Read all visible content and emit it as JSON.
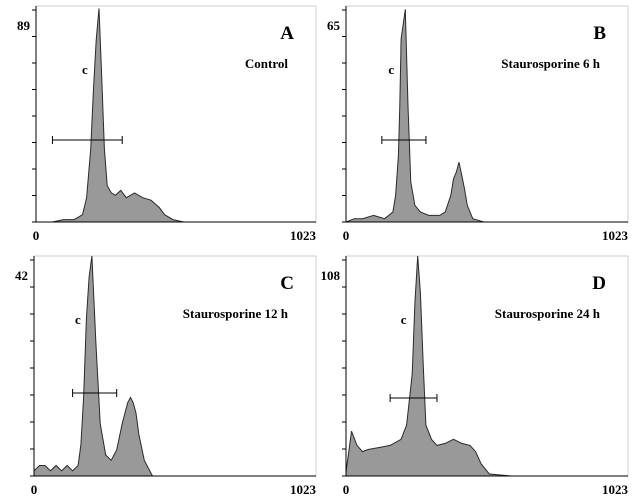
{
  "chart_data": [
    {
      "panel": "A",
      "type": "area",
      "condition": "Control",
      "xlim": [
        0,
        1023
      ],
      "x_tick_labels": [
        "0",
        "1023"
      ],
      "ylim": [
        0,
        89
      ],
      "y_max_label": "89",
      "peak_label": "c",
      "x": [
        0,
        30,
        60,
        100,
        140,
        170,
        185,
        200,
        210,
        220,
        230,
        240,
        250,
        260,
        275,
        290,
        310,
        330,
        360,
        390,
        420,
        450,
        470,
        500,
        540,
        600,
        700,
        800,
        900,
        1023
      ],
      "y": [
        0,
        0,
        0,
        1,
        1,
        3,
        10,
        30,
        55,
        75,
        88,
        60,
        30,
        15,
        12,
        11,
        13,
        10,
        12,
        10,
        9,
        6,
        3,
        1,
        0,
        0,
        0,
        0,
        0,
        0
      ]
    },
    {
      "panel": "B",
      "type": "area",
      "condition": "Staurosporine 6 h",
      "xlim": [
        0,
        1023
      ],
      "x_tick_labels": [
        "0",
        "1023"
      ],
      "ylim": [
        0,
        65
      ],
      "y_max_label": "65",
      "peak_label": "c",
      "x": [
        0,
        30,
        60,
        100,
        140,
        170,
        180,
        190,
        195,
        200,
        215,
        225,
        235,
        250,
        270,
        300,
        340,
        360,
        380,
        390,
        400,
        410,
        420,
        430,
        440,
        460,
        500,
        600,
        700,
        800,
        900,
        1023
      ],
      "y": [
        0,
        1,
        1,
        2,
        1,
        3,
        8,
        20,
        35,
        55,
        64,
        35,
        12,
        5,
        3,
        2,
        2,
        3,
        8,
        13,
        15,
        18,
        14,
        10,
        5,
        1,
        0,
        0,
        0,
        0,
        0,
        0
      ]
    },
    {
      "panel": "C",
      "type": "area",
      "condition": "Staurosporine 12 h",
      "xlim": [
        0,
        1023
      ],
      "x_tick_labels": [
        "0",
        "1023"
      ],
      "ylim": [
        0,
        42
      ],
      "y_max_label": "42",
      "peak_label": "c",
      "x": [
        0,
        20,
        40,
        60,
        80,
        100,
        120,
        140,
        160,
        170,
        180,
        190,
        200,
        210,
        225,
        240,
        260,
        280,
        300,
        320,
        340,
        350,
        360,
        370,
        380,
        400,
        430,
        500,
        600,
        700,
        800,
        900,
        1023
      ],
      "y": [
        1,
        2,
        2,
        1,
        2,
        1,
        2,
        1,
        2,
        6,
        15,
        30,
        38,
        42,
        25,
        10,
        4,
        3,
        5,
        10,
        14,
        15,
        14,
        12,
        8,
        3,
        0,
        0,
        0,
        0,
        0,
        0,
        0
      ]
    },
    {
      "panel": "D",
      "type": "area",
      "condition": "Staurosporine 24 h",
      "xlim": [
        0,
        1023
      ],
      "x_tick_labels": [
        "0",
        "1023"
      ],
      "ylim": [
        0,
        108
      ],
      "y_max_label": "108",
      "peak_label": "c",
      "x": [
        0,
        10,
        20,
        40,
        60,
        80,
        120,
        160,
        200,
        220,
        240,
        250,
        260,
        270,
        280,
        290,
        310,
        330,
        360,
        390,
        420,
        450,
        470,
        490,
        520,
        600,
        700,
        800,
        900,
        1023
      ],
      "y": [
        2,
        12,
        22,
        15,
        12,
        13,
        14,
        15,
        18,
        25,
        50,
        85,
        108,
        90,
        55,
        25,
        18,
        15,
        16,
        18,
        16,
        15,
        12,
        6,
        1,
        0,
        0,
        0,
        0,
        0
      ]
    }
  ]
}
